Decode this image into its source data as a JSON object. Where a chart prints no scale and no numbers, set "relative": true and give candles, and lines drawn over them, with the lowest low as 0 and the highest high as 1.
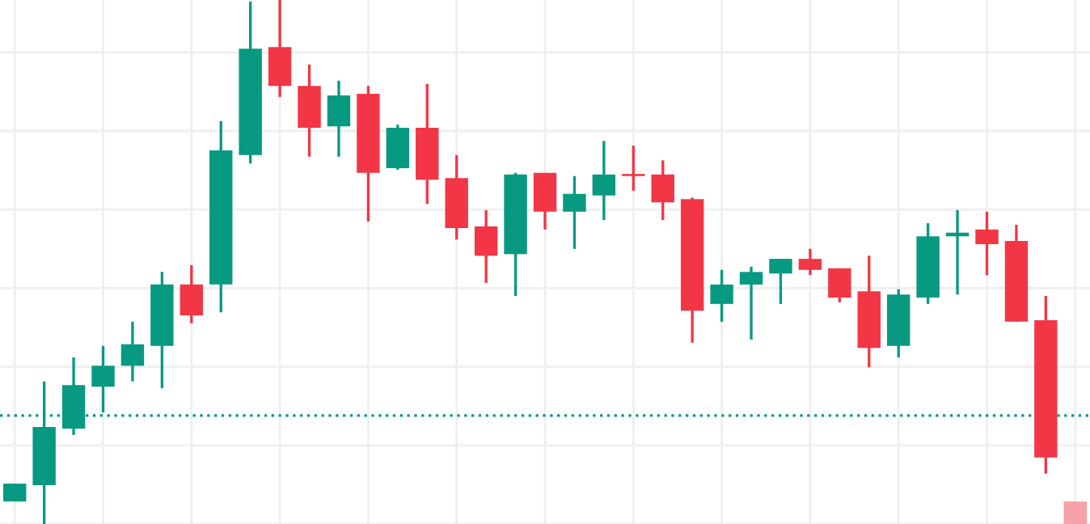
{
  "chart_data": {
    "type": "candlestick",
    "relative": true,
    "grid": true,
    "categories": [
      null,
      null,
      null,
      null,
      null,
      null,
      null,
      null,
      null,
      null,
      null,
      null,
      null,
      null,
      null,
      null,
      null,
      null,
      null,
      null,
      null,
      null,
      null,
      null,
      null,
      null,
      null,
      null,
      null,
      null,
      null,
      null,
      null,
      null,
      null,
      null,
      null
    ],
    "ohlc": [
      [
        0.043,
        0.077,
        0.043,
        0.077
      ],
      [
        0.074,
        0.272,
        0,
        0.185
      ],
      [
        0.182,
        0.318,
        0.17,
        0.265
      ],
      [
        0.262,
        0.34,
        0.213,
        0.302
      ],
      [
        0.302,
        0.386,
        0.272,
        0.343
      ],
      [
        0.34,
        0.481,
        0.259,
        0.457
      ],
      [
        0.457,
        0.494,
        0.383,
        0.398
      ],
      [
        0.457,
        0.769,
        0.404,
        0.713
      ],
      [
        0.704,
        0.997,
        0.688,
        0.907
      ],
      [
        0.91,
        1,
        0.815,
        0.836
      ],
      [
        0.836,
        0.877,
        0.701,
        0.756
      ],
      [
        0.759,
        0.846,
        0.701,
        0.818
      ],
      [
        0.821,
        0.836,
        0.577,
        0.67
      ],
      [
        0.679,
        0.762,
        0.676,
        0.756
      ],
      [
        0.756,
        0.84,
        0.611,
        0.657
      ],
      [
        0.66,
        0.704,
        0.543,
        0.565
      ],
      [
        0.568,
        0.599,
        0.46,
        0.512
      ],
      [
        0.515,
        0.67,
        0.435,
        0.667
      ],
      [
        0.67,
        0.67,
        0.562,
        0.596
      ],
      [
        0.596,
        0.664,
        0.525,
        0.63
      ],
      [
        0.627,
        0.731,
        0.58,
        0.667
      ],
      [
        0.667,
        0.722,
        0.636,
        0.664
      ],
      [
        0.667,
        0.694,
        0.58,
        0.614
      ],
      [
        0.62,
        0.623,
        0.346,
        0.407
      ],
      [
        0.42,
        0.485,
        0.386,
        0.457
      ],
      [
        0.457,
        0.491,
        0.352,
        0.481
      ],
      [
        0.478,
        0.506,
        0.42,
        0.506
      ],
      [
        0.506,
        0.525,
        0.475,
        0.485
      ],
      [
        0.488,
        0.488,
        0.423,
        0.432
      ],
      [
        0.444,
        0.512,
        0.299,
        0.336
      ],
      [
        0.34,
        0.448,
        0.318,
        0.438
      ],
      [
        0.432,
        0.574,
        0.42,
        0.549
      ],
      [
        0.549,
        0.599,
        0.438,
        0.556
      ],
      [
        0.562,
        0.596,
        0.475,
        0.534
      ],
      [
        0.54,
        0.571,
        0.386,
        0.386
      ],
      [
        0.389,
        0.435,
        0.096,
        0.127
      ],
      [
        0.043,
        0.043,
        0,
        0
      ]
    ],
    "colors": [
      "#089981",
      "#089981",
      "#089981",
      "#089981",
      "#089981",
      "#089981",
      "#f23645",
      "#089981",
      "#089981",
      "#f23645",
      "#f23645",
      "#089981",
      "#f23645",
      "#089981",
      "#f23645",
      "#f23645",
      "#f23645",
      "#089981",
      "#f23645",
      "#089981",
      "#089981",
      "#f23645",
      "#f23645",
      "#f23645",
      "#089981",
      "#089981",
      "#089981",
      "#f23645",
      "#f23645",
      "#f23645",
      "#089981",
      "#089981",
      "#089981",
      "#f23645",
      "#f23645",
      "#f23645",
      "#f7a1a8"
    ],
    "ref_lines": [
      {
        "axis": "y",
        "value": 0.207,
        "color": "#089981",
        "line_style": "dotted"
      }
    ]
  }
}
